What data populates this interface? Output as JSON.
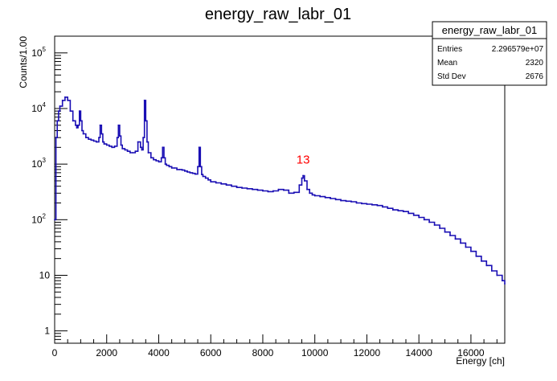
{
  "chart_data": {
    "type": "line",
    "title": "energy_raw_labr_01",
    "xlabel": "Energy [ch]",
    "ylabel": "Counts/1.00",
    "xlim": [
      0,
      17300
    ],
    "ylim": [
      0.6,
      200000
    ],
    "yscale": "log",
    "grid": false,
    "x_ticks": [
      {
        "value": 0,
        "label": "0"
      },
      {
        "value": 2000,
        "label": "2000"
      },
      {
        "value": 4000,
        "label": "4000"
      },
      {
        "value": 6000,
        "label": "6000"
      },
      {
        "value": 8000,
        "label": "8000"
      },
      {
        "value": 10000,
        "label": "10000"
      },
      {
        "value": 12000,
        "label": "12000"
      },
      {
        "value": 14000,
        "label": "14000"
      },
      {
        "value": 16000,
        "label": "16000"
      }
    ],
    "y_ticks": [
      {
        "value": 1,
        "base": "1",
        "exp": ""
      },
      {
        "value": 10,
        "base": "10",
        "exp": ""
      },
      {
        "value": 100,
        "base": "10",
        "exp": "2"
      },
      {
        "value": 1000,
        "base": "10",
        "exp": "3"
      },
      {
        "value": 10000,
        "base": "10",
        "exp": "4"
      },
      {
        "value": 100000,
        "base": "10",
        "exp": "5"
      }
    ],
    "annotation": {
      "text": "13",
      "x": 9550,
      "y": 900,
      "color": "#ff0000"
    },
    "series": [
      {
        "color": "#1a0fb4",
        "x": [
          0,
          50,
          100,
          150,
          200,
          300,
          400,
          500,
          600,
          700,
          800,
          850,
          900,
          950,
          1000,
          1050,
          1100,
          1200,
          1300,
          1400,
          1500,
          1600,
          1700,
          1750,
          1800,
          1850,
          1900,
          2000,
          2100,
          2200,
          2300,
          2400,
          2450,
          2500,
          2550,
          2600,
          2700,
          2800,
          2900,
          3000,
          3100,
          3200,
          3300,
          3350,
          3400,
          3450,
          3500,
          3550,
          3600,
          3700,
          3800,
          3900,
          4000,
          4100,
          4150,
          4200,
          4250,
          4300,
          4400,
          4500,
          4600,
          4700,
          4800,
          4900,
          5000,
          5100,
          5200,
          5300,
          5400,
          5500,
          5550,
          5600,
          5650,
          5700,
          5800,
          5900,
          6000,
          6200,
          6400,
          6600,
          6800,
          7000,
          7200,
          7400,
          7600,
          7800,
          8000,
          8200,
          8400,
          8600,
          8800,
          9000,
          9200,
          9400,
          9500,
          9550,
          9600,
          9700,
          9800,
          9900,
          10000,
          10200,
          10400,
          10600,
          10800,
          11000,
          11200,
          11400,
          11600,
          11800,
          12000,
          12200,
          12400,
          12600,
          12800,
          13000,
          13200,
          13400,
          13600,
          13800,
          14000,
          14200,
          14400,
          14600,
          14800,
          15000,
          15200,
          15400,
          15600,
          15800,
          16000,
          16200,
          16400,
          16600,
          16800,
          17000,
          17200,
          17300
        ],
        "y": [
          100,
          3000,
          6000,
          9000,
          11000,
          14000,
          16000,
          14000,
          9000,
          6000,
          5000,
          4500,
          5000,
          9000,
          6000,
          4000,
          3500,
          3000,
          2800,
          2700,
          2600,
          2500,
          3000,
          5000,
          3500,
          2500,
          2300,
          2200,
          2100,
          2000,
          2100,
          3000,
          5000,
          3200,
          2200,
          1900,
          1800,
          1700,
          1600,
          1600,
          1700,
          2500,
          2000,
          1800,
          3000,
          14000,
          6000,
          2500,
          1600,
          1300,
          1200,
          1150,
          1100,
          1300,
          2000,
          1300,
          1000,
          950,
          900,
          850,
          850,
          800,
          800,
          780,
          750,
          720,
          700,
          680,
          660,
          900,
          2000,
          900,
          650,
          600,
          560,
          520,
          480,
          460,
          440,
          420,
          400,
          380,
          370,
          360,
          350,
          340,
          330,
          320,
          330,
          350,
          340,
          300,
          310,
          420,
          560,
          620,
          500,
          350,
          300,
          280,
          270,
          260,
          250,
          240,
          230,
          220,
          215,
          210,
          200,
          195,
          190,
          185,
          180,
          170,
          160,
          150,
          145,
          140,
          130,
          120,
          110,
          100,
          90,
          80,
          70,
          60,
          52,
          45,
          38,
          32,
          27,
          22,
          18,
          15,
          12,
          10,
          8,
          7
        ]
      }
    ]
  },
  "stats_box": {
    "title": "energy_raw_labr_01",
    "rows": [
      {
        "label": "Entries",
        "value": "2.296579e+07"
      },
      {
        "label": "Mean",
        "value": "2320"
      },
      {
        "label": "Std Dev",
        "value": "2676"
      }
    ]
  }
}
